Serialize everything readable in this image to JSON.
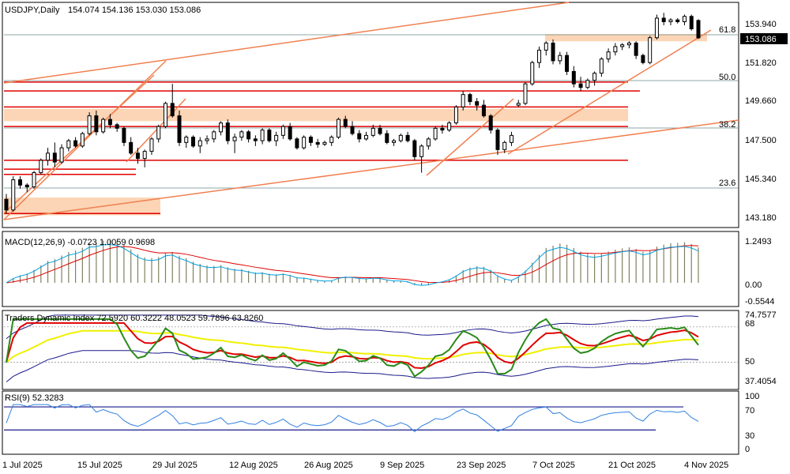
{
  "header": {
    "symbol_tf": "USDJPY,Daily",
    "ohlc": "154.074 154.136 153.030 153.086"
  },
  "price_axis": {
    "ticks": [
      "153.940",
      "151.820",
      "149.660",
      "147.500",
      "145.340",
      "143.180"
    ],
    "current_price_label": "153.086"
  },
  "fib_levels": [
    "61.8",
    "50.0",
    "38.2",
    "23.6"
  ],
  "macd_panel": {
    "title": "MACD(12,26,9) -0.0723 1.0059 0.9698",
    "ticks": [
      "1.2493",
      "0.00",
      "-0.5544"
    ]
  },
  "tdi_panel": {
    "title": "Traders Dynamic Index 72.5920 60.3222 48.0523 59.7896 63.8260",
    "ticks": [
      "74.7577",
      "68",
      "50",
      "37.4054"
    ]
  },
  "rsi_panel": {
    "title": "RSI(9) 52.3283",
    "ticks": [
      "100",
      "70",
      "30",
      "0"
    ]
  },
  "time_axis": [
    "1 Jul 2025",
    "15 Jul 2025",
    "29 Jul 2025",
    "12 Aug 2025",
    "26 Aug 2025",
    "9 Sep 2025",
    "23 Sep 2025",
    "7 Oct 2025",
    "21 Oct 2025",
    "4 Nov 2025"
  ],
  "colors": {
    "bull": "#ffffff",
    "bear": "#000000",
    "support_resistance": "#e00000",
    "trendline": "#f08050",
    "zone": "#fbd5b5",
    "macd_hist": "#808060",
    "macd_signal": "#e00000",
    "macd_line": "#00a0e0",
    "tdi_green": "#2a8a1a",
    "tdi_red": "#e00000",
    "tdi_yellow": "#f0f000",
    "tdi_band": "#1a1a8a",
    "rsi_line": "#3080e0",
    "rsi_level": "#1a1a8a"
  },
  "chart_data": {
    "type": "candlestick",
    "title": "USDJPY,Daily",
    "ylim": [
      142.5,
      155.0
    ],
    "candles_ohlc": [
      [
        144.0,
        144.3,
        143.2,
        143.4
      ],
      [
        143.4,
        145.3,
        143.3,
        145.1
      ],
      [
        145.1,
        145.3,
        144.6,
        144.8
      ],
      [
        144.8,
        144.9,
        144.4,
        144.7
      ],
      [
        144.7,
        145.6,
        144.6,
        145.5
      ],
      [
        145.5,
        146.3,
        145.4,
        146.2
      ],
      [
        146.2,
        146.9,
        145.9,
        146.6
      ],
      [
        146.6,
        147.2,
        145.8,
        146.1
      ],
      [
        146.1,
        147.1,
        146.0,
        146.9
      ],
      [
        146.9,
        147.4,
        146.7,
        147.3
      ],
      [
        147.3,
        147.5,
        146.9,
        147.0
      ],
      [
        147.0,
        147.8,
        146.9,
        147.7
      ],
      [
        147.7,
        148.9,
        147.6,
        148.7
      ],
      [
        148.7,
        149.0,
        147.6,
        147.8
      ],
      [
        147.8,
        148.6,
        147.7,
        148.5
      ],
      [
        148.5,
        148.8,
        148.0,
        148.2
      ],
      [
        148.2,
        148.3,
        147.8,
        148.0
      ],
      [
        148.0,
        148.1,
        147.0,
        147.2
      ],
      [
        147.2,
        147.5,
        146.5,
        146.6
      ],
      [
        146.6,
        146.9,
        146.0,
        146.3
      ],
      [
        146.3,
        146.8,
        145.8,
        146.7
      ],
      [
        146.7,
        147.5,
        146.5,
        147.4
      ],
      [
        147.4,
        148.2,
        147.2,
        148.1
      ],
      [
        148.1,
        149.5,
        148.0,
        149.4
      ],
      [
        149.4,
        150.5,
        148.6,
        148.7
      ],
      [
        148.7,
        149.0,
        147.0,
        147.2
      ],
      [
        147.2,
        147.6,
        146.9,
        147.5
      ],
      [
        147.5,
        147.6,
        146.9,
        147.0
      ],
      [
        147.0,
        147.5,
        146.6,
        147.3
      ],
      [
        147.3,
        147.6,
        147.1,
        147.4
      ],
      [
        147.4,
        147.9,
        147.2,
        147.8
      ],
      [
        147.8,
        148.4,
        147.6,
        148.3
      ],
      [
        148.3,
        148.5,
        147.1,
        147.3
      ],
      [
        147.3,
        147.7,
        146.6,
        147.5
      ],
      [
        147.5,
        147.9,
        147.3,
        147.8
      ],
      [
        147.8,
        147.9,
        147.2,
        147.4
      ],
      [
        147.4,
        147.6,
        147.0,
        147.3
      ],
      [
        147.3,
        148.0,
        147.1,
        147.9
      ],
      [
        147.9,
        148.0,
        147.2,
        147.3
      ],
      [
        147.3,
        147.8,
        147.0,
        147.6
      ],
      [
        147.6,
        148.2,
        147.4,
        148.1
      ],
      [
        148.1,
        148.3,
        147.3,
        147.4
      ],
      [
        147.4,
        147.5,
        146.8,
        146.9
      ],
      [
        146.9,
        147.6,
        146.8,
        147.5
      ],
      [
        147.5,
        147.6,
        147.0,
        147.2
      ],
      [
        147.2,
        147.4,
        146.9,
        147.1
      ],
      [
        147.1,
        147.3,
        147.0,
        147.2
      ],
      [
        147.2,
        147.6,
        147.0,
        147.5
      ],
      [
        147.5,
        148.6,
        147.4,
        148.5
      ],
      [
        148.5,
        148.7,
        148.0,
        148.1
      ],
      [
        148.1,
        148.4,
        147.6,
        147.7
      ],
      [
        147.7,
        147.9,
        147.2,
        147.4
      ],
      [
        147.4,
        147.8,
        147.3,
        147.6
      ],
      [
        147.6,
        148.2,
        147.5,
        148.0
      ],
      [
        148.0,
        148.2,
        147.6,
        147.7
      ],
      [
        147.7,
        147.9,
        147.1,
        147.2
      ],
      [
        147.2,
        147.4,
        147.0,
        147.3
      ],
      [
        147.3,
        147.7,
        147.2,
        147.6
      ],
      [
        147.6,
        147.8,
        147.2,
        147.3
      ],
      [
        147.3,
        147.4,
        146.2,
        146.4
      ],
      [
        146.4,
        147.1,
        145.5,
        147.0
      ],
      [
        147.0,
        147.5,
        146.8,
        147.4
      ],
      [
        147.4,
        148.1,
        147.3,
        148.0
      ],
      [
        148.0,
        148.2,
        147.7,
        147.9
      ],
      [
        147.9,
        148.4,
        147.8,
        148.3
      ],
      [
        148.3,
        149.3,
        148.2,
        149.2
      ],
      [
        149.2,
        150.1,
        149.0,
        149.9
      ],
      [
        149.9,
        150.0,
        149.3,
        149.5
      ],
      [
        149.5,
        149.7,
        149.0,
        149.3
      ],
      [
        149.3,
        149.6,
        148.6,
        148.7
      ],
      [
        148.7,
        148.8,
        147.7,
        147.9
      ],
      [
        147.9,
        148.0,
        146.5,
        146.8
      ],
      [
        146.8,
        147.3,
        146.6,
        147.2
      ],
      [
        147.2,
        147.8,
        147.0,
        147.6
      ],
      [
        149.3,
        149.6,
        149.2,
        149.4
      ],
      [
        149.4,
        150.6,
        149.3,
        150.5
      ],
      [
        150.5,
        151.8,
        150.4,
        151.7
      ],
      [
        151.7,
        152.6,
        151.4,
        152.4
      ],
      [
        152.4,
        152.9,
        152.1,
        152.8
      ],
      [
        152.8,
        153.0,
        151.6,
        151.8
      ],
      [
        151.8,
        152.3,
        151.6,
        152.1
      ],
      [
        152.1,
        152.3,
        151.0,
        151.2
      ],
      [
        151.2,
        151.5,
        150.3,
        150.5
      ],
      [
        150.5,
        150.9,
        150.1,
        150.3
      ],
      [
        150.3,
        150.8,
        150.2,
        150.7
      ],
      [
        150.7,
        151.2,
        150.4,
        151.1
      ],
      [
        151.1,
        152.0,
        150.9,
        151.9
      ],
      [
        151.9,
        152.5,
        151.7,
        152.3
      ],
      [
        152.3,
        152.8,
        152.1,
        152.6
      ],
      [
        152.6,
        152.8,
        152.4,
        152.7
      ],
      [
        152.7,
        152.9,
        152.5,
        152.8
      ],
      [
        152.8,
        152.9,
        151.9,
        152.1
      ],
      [
        152.1,
        152.2,
        151.6,
        151.7
      ],
      [
        151.7,
        153.2,
        151.6,
        153.1
      ],
      [
        153.1,
        154.4,
        153.0,
        154.2
      ],
      [
        154.2,
        154.5,
        153.8,
        154.0
      ],
      [
        154.0,
        154.2,
        153.8,
        154.1
      ],
      [
        154.1,
        154.2,
        153.9,
        154.0
      ],
      [
        154.0,
        154.4,
        153.8,
        154.3
      ],
      [
        154.3,
        154.4,
        153.5,
        153.6
      ],
      [
        154.07,
        154.14,
        153.03,
        153.09
      ]
    ],
    "horizontal_levels": [
      150.6,
      150.1,
      149.2,
      148.1,
      146.2,
      145.7,
      145.4,
      143.2
    ],
    "zones": [
      [
        152.9,
        153.3
      ],
      [
        148.4,
        149.1
      ],
      [
        143.1,
        144.1
      ]
    ],
    "macd": {
      "ylim": [
        -0.5544,
        1.2493
      ],
      "main": -0.0723,
      "signal": 1.0059
    },
    "tdi": {
      "ylim": [
        37.4054,
        74.7577
      ],
      "levels": [
        68,
        50
      ]
    },
    "rsi": {
      "ylim": [
        0,
        100
      ],
      "levels": [
        70,
        30
      ],
      "value": 52.3283
    }
  }
}
